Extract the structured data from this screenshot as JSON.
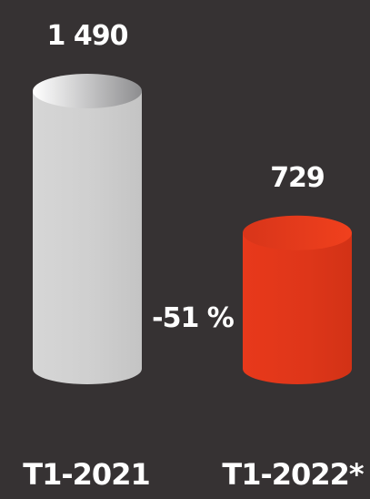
{
  "chart_data": {
    "type": "bar",
    "categories": [
      "T1-2021",
      "T1-2022*"
    ],
    "values": [
      1490,
      729
    ],
    "value_labels": [
      "1 490",
      "729"
    ],
    "change_label": "-51 %",
    "colors": [
      "#cfcfcf",
      "#e2381c"
    ],
    "background": "#363233",
    "title": "",
    "xlabel": "",
    "ylabel": ""
  }
}
